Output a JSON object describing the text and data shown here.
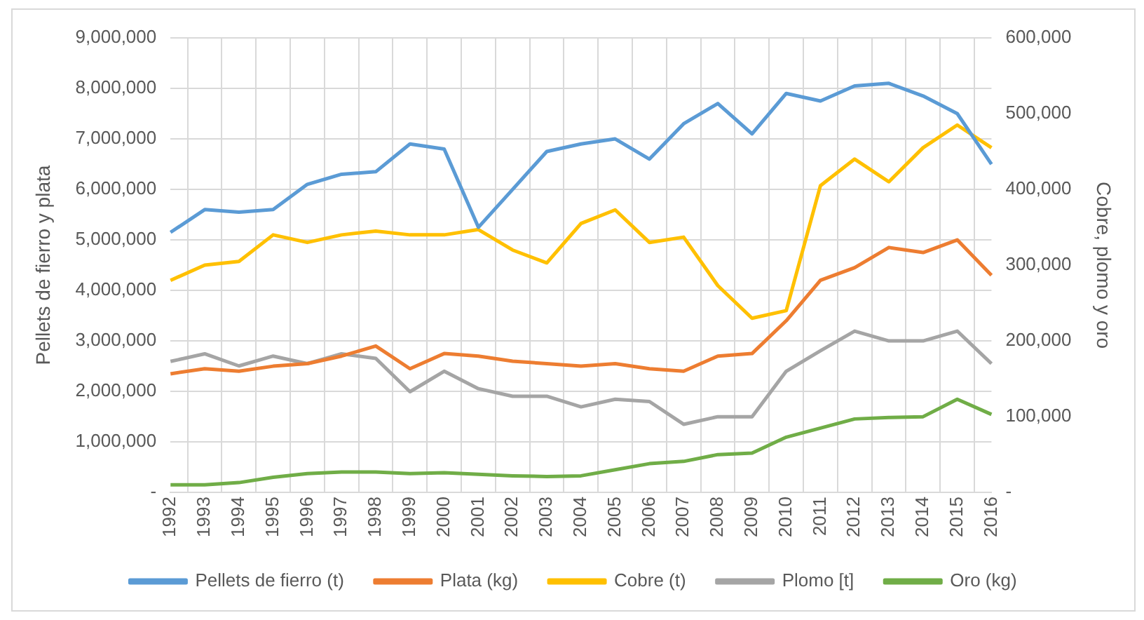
{
  "chart_data": {
    "type": "line",
    "ylabel": "Pellets de fierro y plata",
    "y2label": "Cobre, plomo y oro",
    "categories": [
      "1992",
      "1993",
      "1994",
      "1995",
      "1996",
      "1997",
      "1998",
      "1999",
      "2000",
      "2001",
      "2002",
      "2003",
      "2004",
      "2005",
      "2006",
      "2007",
      "2008",
      "2009",
      "2010",
      "2011",
      "2012",
      "2013",
      "2014",
      "2015",
      "2016"
    ],
    "series": [
      {
        "name": "Pellets de fierro (t)",
        "color": "#5b9bd5",
        "values": [
          5150000,
          5600000,
          5550000,
          5600000,
          6100000,
          6300000,
          6350000,
          6900000,
          6800000,
          5250000,
          6000000,
          6750000,
          6900000,
          7000000,
          6600000,
          7300000,
          7700000,
          7100000,
          7900000,
          7750000,
          8050000,
          8100000,
          7850000,
          7500000,
          6500000
        ]
      },
      {
        "name": "Plata (kg)",
        "color": "#ed7d31",
        "values": [
          2350000,
          2450000,
          2400000,
          2500000,
          2550000,
          2700000,
          2900000,
          2450000,
          2750000,
          2700000,
          2600000,
          2550000,
          2500000,
          2550000,
          2450000,
          2400000,
          2700000,
          2750000,
          3400000,
          4200000,
          4450000,
          4850000,
          4750000,
          5000000,
          4300000
        ]
      },
      {
        "name": "Cobre (t)",
        "color": "#ffc000",
        "axis": "y2",
        "values": [
          280000,
          300000,
          305000,
          340000,
          330000,
          340000,
          345000,
          340000,
          340000,
          347000,
          320000,
          303000,
          355000,
          373000,
          330000,
          337000,
          273000,
          230000,
          240000,
          405000,
          440000,
          410000,
          455000,
          485000,
          455000
        ]
      },
      {
        "name": "Plomo [t]",
        "color": "#a5a5a5",
        "axis": "y2",
        "values": [
          173000,
          183000,
          167000,
          180000,
          170000,
          183000,
          177000,
          133000,
          160000,
          137000,
          127000,
          127000,
          113000,
          123000,
          120000,
          90000,
          100000,
          100000,
          160000,
          187000,
          213000,
          200000,
          200000,
          213000,
          170000
        ]
      },
      {
        "name": "Oro (kg)",
        "color": "#70ad47",
        "axis": "y2",
        "values": [
          10000,
          10000,
          13000,
          20000,
          25000,
          27000,
          27000,
          25000,
          26000,
          24000,
          22000,
          21000,
          22000,
          30000,
          38000,
          41000,
          50000,
          52000,
          73000,
          85000,
          97000,
          99000,
          100000,
          123000,
          103000
        ]
      }
    ],
    "ylim": [
      0,
      9000000
    ],
    "yticks": [
      {
        "value": 0,
        "label": "-"
      },
      {
        "value": 1000000,
        "label": "1,000,000"
      },
      {
        "value": 2000000,
        "label": "2,000,000"
      },
      {
        "value": 3000000,
        "label": "3,000,000"
      },
      {
        "value": 4000000,
        "label": "4,000,000"
      },
      {
        "value": 5000000,
        "label": "5,000,000"
      },
      {
        "value": 6000000,
        "label": "6,000,000"
      },
      {
        "value": 7000000,
        "label": "7,000,000"
      },
      {
        "value": 8000000,
        "label": "8,000,000"
      },
      {
        "value": 9000000,
        "label": "9,000,000"
      }
    ],
    "y2lim": [
      0,
      600000
    ],
    "y2ticks": [
      {
        "value": 0,
        "label": "-"
      },
      {
        "value": 100000,
        "label": "100,000"
      },
      {
        "value": 200000,
        "label": "200,000"
      },
      {
        "value": 300000,
        "label": "300,000"
      },
      {
        "value": 400000,
        "label": "400,000"
      },
      {
        "value": 500000,
        "label": "500,000"
      },
      {
        "value": 600000,
        "label": "600,000"
      }
    ],
    "grid": true,
    "legend": "bottom",
    "marker": "none",
    "line_style": "solid"
  }
}
